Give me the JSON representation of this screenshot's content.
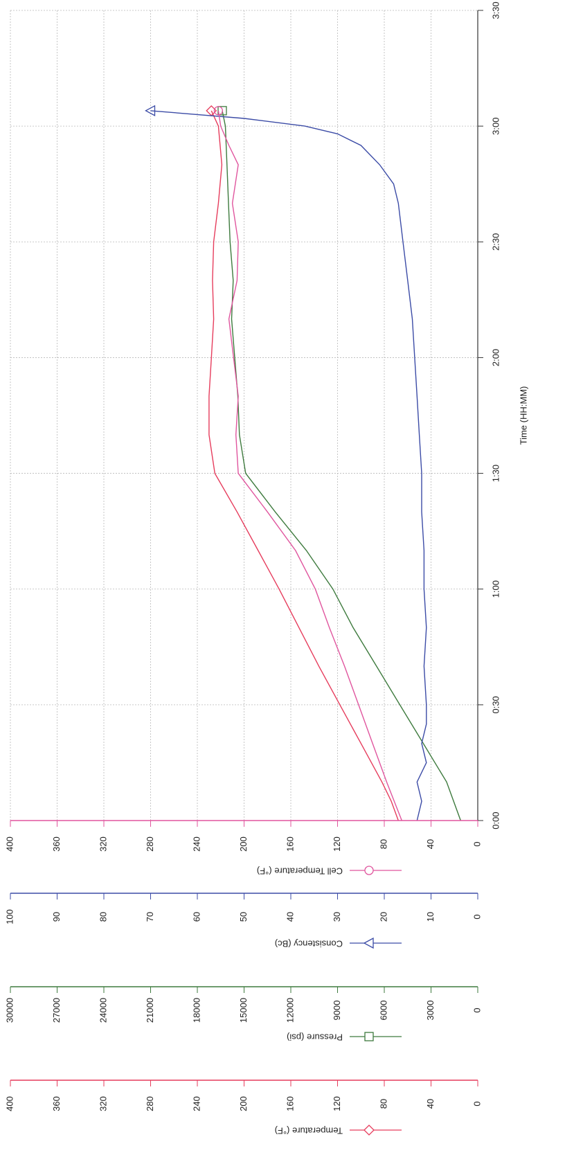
{
  "chart_data": {
    "type": "line",
    "xlabel": "Time (HH:MM)",
    "xlim": [
      0,
      210
    ],
    "xticks": [
      {
        "value": 0,
        "label": "0:00"
      },
      {
        "value": 30,
        "label": "0:30"
      },
      {
        "value": 60,
        "label": "1:00"
      },
      {
        "value": 90,
        "label": "1:30"
      },
      {
        "value": 120,
        "label": "2:00"
      },
      {
        "value": 150,
        "label": "2:30"
      },
      {
        "value": 180,
        "label": "3:00"
      },
      {
        "value": 210,
        "label": "3:30"
      }
    ],
    "grid": true,
    "series": [
      {
        "name": "Temperature (°F)",
        "color": "#e63c5c",
        "marker": "diamond",
        "ylim": [
          0,
          400
        ],
        "yticks": [
          0,
          40,
          80,
          120,
          160,
          200,
          240,
          280,
          320,
          360,
          400
        ],
        "x": [
          0,
          5,
          10,
          20,
          30,
          40,
          50,
          60,
          70,
          80,
          90,
          100,
          110,
          120,
          130,
          140,
          150,
          160,
          170,
          180,
          184
        ],
        "values": [
          68,
          74,
          82,
          100,
          118,
          136,
          153,
          170,
          188,
          206,
          225,
          230,
          230,
          228,
          226,
          227,
          226,
          222,
          219,
          222,
          228
        ]
      },
      {
        "name": "Pressure (psi)",
        "color": "#3d7a3d",
        "marker": "square",
        "ylim": [
          0,
          30000
        ],
        "yticks": [
          0,
          3000,
          6000,
          9000,
          12000,
          15000,
          18000,
          21000,
          24000,
          27000,
          30000
        ],
        "x": [
          0,
          10,
          20,
          30,
          40,
          50,
          60,
          70,
          80,
          90,
          100,
          110,
          120,
          130,
          140,
          150,
          160,
          170,
          180,
          184
        ],
        "values": [
          1100,
          2000,
          3500,
          5000,
          6500,
          8000,
          9300,
          11000,
          13000,
          14900,
          15300,
          15400,
          15600,
          15800,
          15700,
          15900,
          16000,
          16100,
          16200,
          16400
        ]
      },
      {
        "name": "Consistency (Bc)",
        "color": "#3b4ba6",
        "marker": "triangle",
        "ylim": [
          0,
          100
        ],
        "yticks": [
          0,
          10,
          20,
          30,
          40,
          50,
          60,
          70,
          80,
          90,
          100
        ],
        "x": [
          0,
          5,
          10,
          15,
          20,
          25,
          30,
          40,
          50,
          60,
          70,
          80,
          90,
          100,
          110,
          120,
          130,
          140,
          150,
          160,
          165,
          170,
          175,
          178,
          180,
          182,
          184
        ],
        "values": [
          13,
          12,
          13,
          11,
          12,
          11,
          11,
          11.5,
          11,
          11.5,
          11.5,
          12,
          12,
          12.5,
          13,
          13.5,
          14,
          15,
          16,
          17,
          18,
          21,
          25,
          30,
          37,
          50,
          70
        ]
      },
      {
        "name": "Cell Temperature (°F)",
        "color": "#e0559e",
        "marker": "circle",
        "ylim": [
          0,
          400
        ],
        "yticks": [
          0,
          40,
          80,
          120,
          160,
          200,
          240,
          280,
          320,
          360,
          400
        ],
        "x": [
          0,
          10,
          20,
          30,
          40,
          50,
          60,
          70,
          80,
          90,
          100,
          110,
          120,
          130,
          140,
          150,
          160,
          170,
          175,
          180,
          184
        ],
        "values": [
          65,
          78,
          90,
          102,
          114,
          127,
          139,
          156,
          180,
          205,
          207,
          205,
          209,
          213,
          206,
          205,
          210,
          205,
          213,
          220,
          222
        ]
      }
    ]
  }
}
